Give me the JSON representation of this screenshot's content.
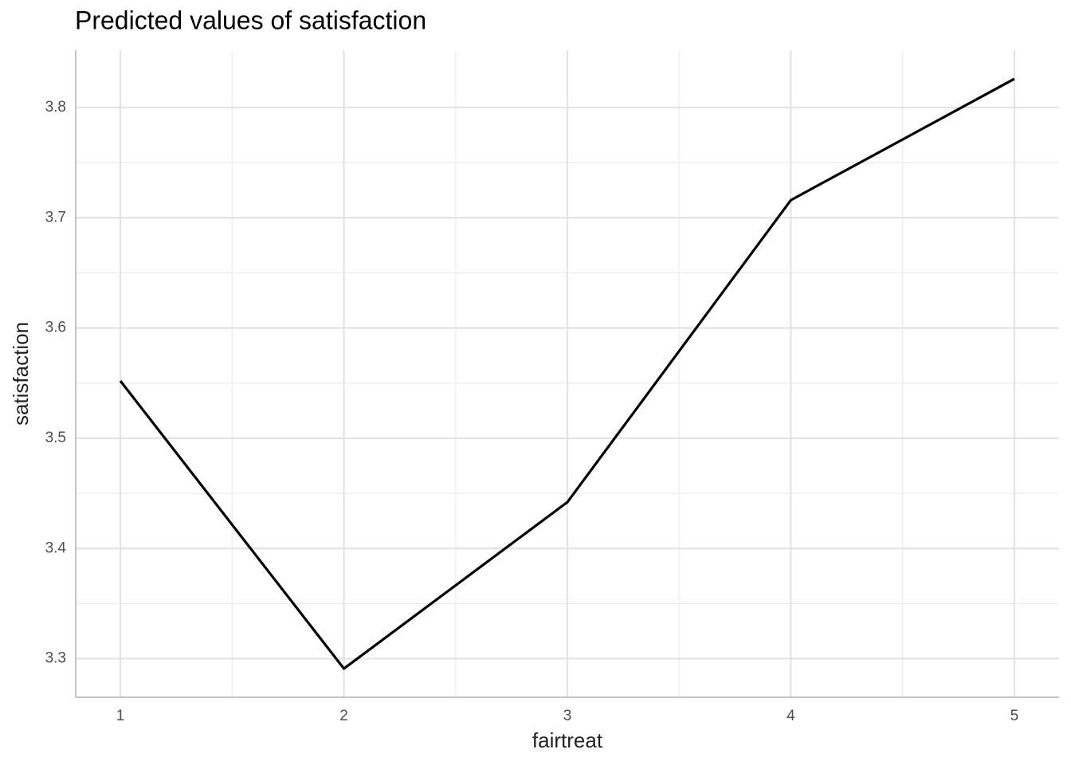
{
  "chart_data": {
    "type": "line",
    "title": "Predicted values of satisfaction",
    "x_label": "fairtreat",
    "y_label": "satisfaction",
    "x": [
      1,
      2,
      3,
      4,
      5
    ],
    "series": [
      {
        "name": "satisfaction",
        "color": "#000000",
        "values": [
          3.552,
          3.291,
          3.442,
          3.716,
          3.826
        ]
      }
    ],
    "xlim": [
      0.8,
      5.2
    ],
    "xticks": [
      1,
      2,
      3,
      4,
      5
    ],
    "ylim": [
      3.265,
      3.852
    ],
    "yticks": [
      3.3,
      3.4,
      3.5,
      3.6,
      3.7,
      3.8
    ],
    "grid": true,
    "minor_grid": true
  }
}
